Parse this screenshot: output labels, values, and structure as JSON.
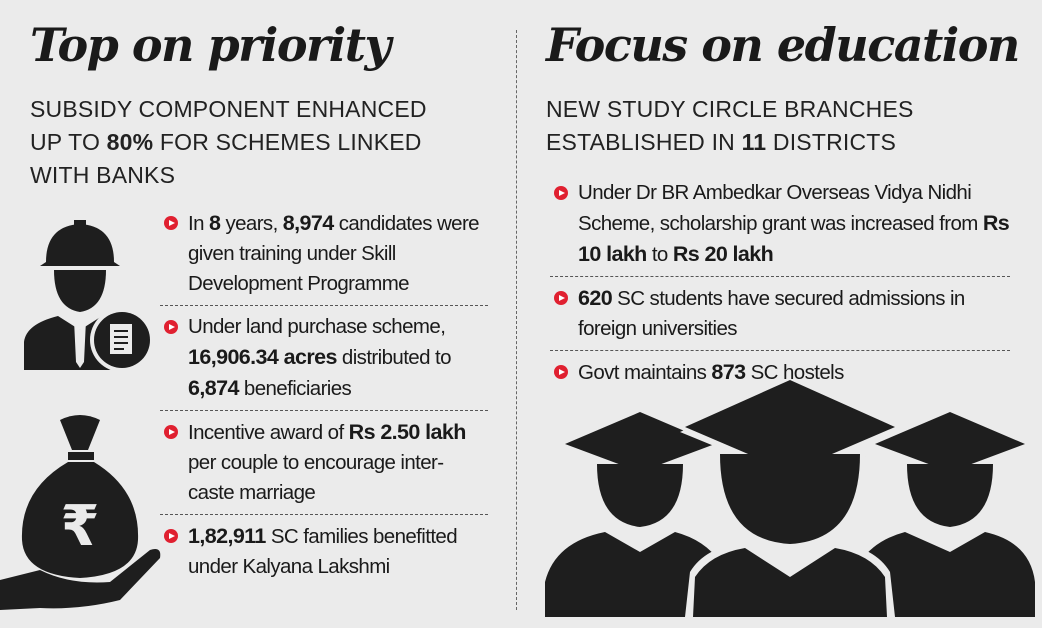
{
  "left": {
    "title": "Top on priority",
    "subtitle": [
      {
        "text": "SUBSIDY COMPONENT ENHANCED UP TO ",
        "bold": false
      },
      {
        "text": "80%",
        "bold": true
      },
      {
        "text": " FOR SCHEMES LINKED WITH BANKS",
        "bold": false
      }
    ],
    "items": [
      [
        {
          "t": "In ",
          "b": false
        },
        {
          "t": "8",
          "b": true
        },
        {
          "t": " years, ",
          "b": false
        },
        {
          "t": "8,974",
          "b": true
        },
        {
          "t": " candidates were given training under Skill Development Programme",
          "b": false
        }
      ],
      [
        {
          "t": "Under land purchase scheme, ",
          "b": false
        },
        {
          "t": "16,906.34 acres",
          "b": true
        },
        {
          "t": " distributed to ",
          "b": false
        },
        {
          "t": "6,874",
          "b": true
        },
        {
          "t": " beneficiaries",
          "b": false
        }
      ],
      [
        {
          "t": "Incentive award of ",
          "b": false
        },
        {
          "t": "Rs 2.50 lakh",
          "b": true
        },
        {
          "t": " per couple to encourage inter-caste marriage",
          "b": false
        }
      ],
      [
        {
          "t": "1,82,911",
          "b": true
        },
        {
          "t": " SC families benefitted under Kalyana Lakshmi",
          "b": false
        }
      ]
    ],
    "icons": [
      "worker-with-document-icon",
      "rupee-money-bag-in-hand-icon"
    ]
  },
  "right": {
    "title": "Focus on education",
    "subtitle": [
      {
        "text": "NEW STUDY CIRCLE BRANCHES ESTABLISHED IN ",
        "bold": false
      },
      {
        "text": "11",
        "bold": true
      },
      {
        "text": " DISTRICTS",
        "bold": false
      }
    ],
    "items": [
      [
        {
          "t": "Under Dr BR Ambedkar Overseas Vidya Nidhi Scheme, scholarship grant was increased from ",
          "b": false
        },
        {
          "t": "Rs 10 lakh",
          "b": true
        },
        {
          "t": " to ",
          "b": false
        },
        {
          "t": "Rs 20 lakh",
          "b": true
        }
      ],
      [
        {
          "t": "620",
          "b": true
        },
        {
          "t": " SC students have secured admissions in foreign universities",
          "b": false
        }
      ],
      [
        {
          "t": "Govt maintains ",
          "b": false
        },
        {
          "t": "873",
          "b": true
        },
        {
          "t": " SC hostels",
          "b": false
        }
      ]
    ],
    "icons": [
      "graduates-icon"
    ]
  },
  "colors": {
    "bullet": "#e02030",
    "background": "#ebebeb",
    "text": "#1a1a1a"
  }
}
